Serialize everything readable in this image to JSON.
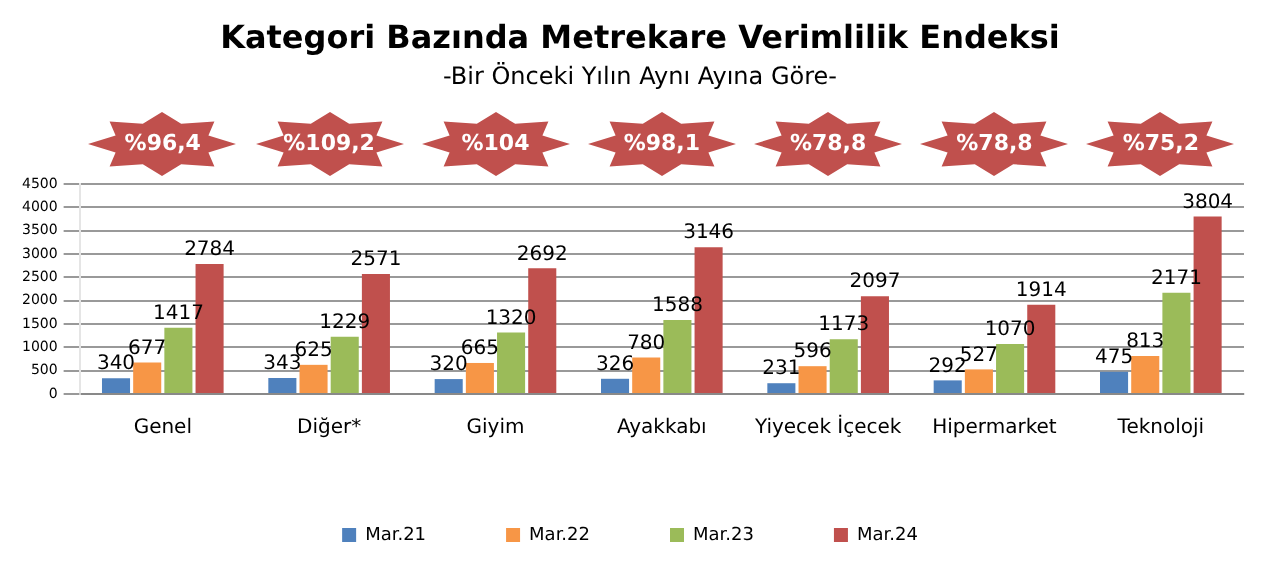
{
  "chart_data": {
    "type": "bar",
    "title": "Kategori Bazında Metrekare Verimlilik Endeksi",
    "subtitle": "-Bir Önceki Yılın Aynı Ayına Göre-",
    "categories": [
      "Genel",
      "Diğer*",
      "Giyim",
      "Ayakkabı",
      "Yiyecek İçecek",
      "Hipermarket",
      "Teknoloji"
    ],
    "series": [
      {
        "name": "Mar.21",
        "color": "#4f81bd",
        "values": [
          340,
          343,
          320,
          326,
          231,
          292,
          475
        ]
      },
      {
        "name": "Mar.22",
        "color": "#f79646",
        "values": [
          677,
          625,
          665,
          780,
          596,
          527,
          813
        ]
      },
      {
        "name": "Mar.23",
        "color": "#9bbb59",
        "values": [
          1417,
          1229,
          1320,
          1588,
          1173,
          1070,
          2171
        ]
      },
      {
        "name": "Mar.24",
        "color": "#c0504d",
        "values": [
          2784,
          2571,
          2692,
          3146,
          2097,
          1914,
          3804
        ]
      }
    ],
    "annotations": [
      "%96,4",
      "%109,2",
      "%104",
      "%98,1",
      "%78,8",
      "%78,8",
      "%75,2"
    ],
    "ylim": [
      0,
      4500
    ],
    "yticks": [
      0,
      500,
      1000,
      1500,
      2000,
      2500,
      3000,
      3500,
      4000,
      4500
    ],
    "grid": "y",
    "legend": "bottom",
    "data_labels": true
  }
}
